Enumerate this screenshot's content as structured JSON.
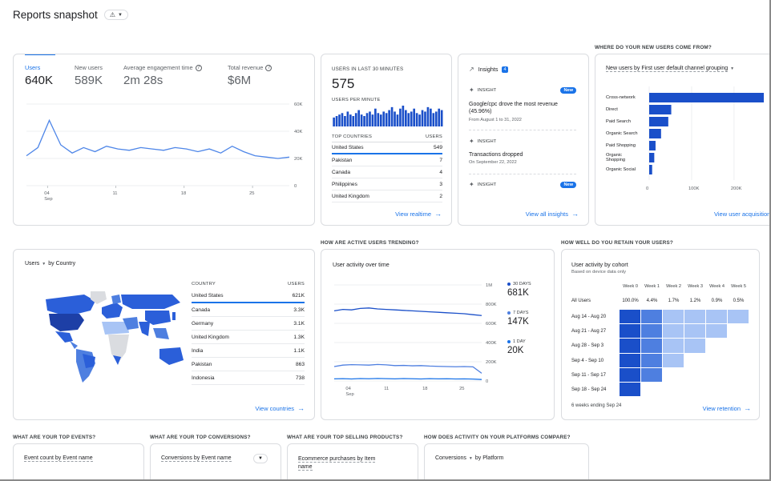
{
  "header": {
    "title": "Reports snapshot"
  },
  "overview": {
    "metrics": [
      {
        "label": "Users",
        "value": "640K"
      },
      {
        "label": "New users",
        "value": "589K"
      },
      {
        "label": "Average engagement time",
        "value": "2m 28s"
      },
      {
        "label": "Total revenue",
        "value": "$6M"
      }
    ],
    "yticks": [
      "60K",
      "40K",
      "20K",
      "0"
    ],
    "xticks": [
      "04",
      "11",
      "18",
      "25"
    ],
    "xmonth": "Sep",
    "series": [
      22,
      28,
      48,
      30,
      24,
      28,
      25,
      29,
      27,
      26,
      28,
      27,
      26,
      28,
      27,
      25,
      27,
      24,
      29,
      25,
      22,
      21,
      20,
      21
    ]
  },
  "realtime": {
    "title": "USERS IN LAST 30 MINUTES",
    "value": "575",
    "sub": "USERS PER MINUTE",
    "bars": [
      6,
      7,
      8,
      9,
      7,
      10,
      8,
      7,
      9,
      11,
      8,
      7,
      9,
      10,
      8,
      12,
      9,
      8,
      10,
      9,
      11,
      13,
      10,
      8,
      12,
      14,
      11,
      9,
      10,
      12,
      9,
      8,
      11,
      10,
      13,
      12,
      9,
      10,
      12,
      11
    ],
    "countries_header": "TOP COUNTRIES",
    "users_header": "USERS",
    "rows": [
      {
        "country": "United States",
        "users": "549"
      },
      {
        "country": "Pakistan",
        "users": "7"
      },
      {
        "country": "Canada",
        "users": "4"
      },
      {
        "country": "Philippines",
        "users": "3"
      },
      {
        "country": "United Kingdom",
        "users": "2"
      }
    ],
    "link": "View realtime"
  },
  "insights": {
    "title": "Insights",
    "count": "4",
    "items": [
      {
        "label": "INSIGHT",
        "badge": "New",
        "text": "Google/cpc drove the most revenue (45.96%)",
        "date": "From August 1 to 31, 2022"
      },
      {
        "label": "INSIGHT",
        "badge": "",
        "text": "Transactions dropped",
        "date": "On September 22, 2022"
      },
      {
        "label": "INSIGHT",
        "badge": "New",
        "text": "",
        "date": ""
      }
    ],
    "link": "View all insights"
  },
  "acquisition": {
    "question": "WHERE DO YOUR NEW USERS COME FROM?",
    "dropdown": "New users by First user default channel grouping",
    "categories": [
      "Cross-network",
      "Direct",
      "Paid Search",
      "Organic Search",
      "Paid Shopping",
      "Organic Shopping",
      "Organic Social"
    ],
    "values": [
      270000,
      52000,
      45000,
      28000,
      15000,
      12000,
      7000
    ],
    "xticks": [
      "0",
      "100K",
      "200K"
    ],
    "link": "View user acquisition"
  },
  "countries": {
    "dropdown": "Users",
    "by": "by Country",
    "col1": "COUNTRY",
    "col2": "USERS",
    "rows": [
      {
        "country": "United States",
        "users": "621K"
      },
      {
        "country": "Canada",
        "users": "3.3K"
      },
      {
        "country": "Germany",
        "users": "3.1K"
      },
      {
        "country": "United Kingdom",
        "users": "1.3K"
      },
      {
        "country": "India",
        "users": "1.1K"
      },
      {
        "country": "Pakistan",
        "users": "863"
      },
      {
        "country": "Indonesia",
        "users": "738"
      }
    ],
    "link": "View countries"
  },
  "activity": {
    "question": "HOW ARE ACTIVE USERS TRENDING?",
    "title": "User activity over time",
    "yticks": [
      "1M",
      "800K",
      "600K",
      "400K",
      "200K",
      "0"
    ],
    "xticks": [
      "04",
      "11",
      "18",
      "25"
    ],
    "xmonth": "Sep",
    "legend": [
      {
        "label": "30 DAYS",
        "value": "681K"
      },
      {
        "label": "7 DAYS",
        "value": "147K"
      },
      {
        "label": "1 DAY",
        "value": "20K"
      }
    ],
    "s30": [
      730000,
      745000,
      740000,
      755000,
      760000,
      750000,
      745000,
      740000,
      735000,
      730000,
      725000,
      720000,
      715000,
      710000,
      705000,
      700000,
      690000,
      681000
    ],
    "s7": [
      150000,
      165000,
      170000,
      168000,
      165000,
      172000,
      168000,
      160000,
      162000,
      158000,
      160000,
      155000,
      152000,
      150000,
      148000,
      150000,
      147000,
      80000
    ],
    "s1": [
      22000,
      24000,
      21000,
      25000,
      23000,
      26000,
      24000,
      22000,
      25000,
      23000,
      21000,
      24000,
      22000,
      23000,
      21000,
      22000,
      20000,
      15000
    ]
  },
  "retention": {
    "question": "HOW WELL DO YOU RETAIN YOUR USERS?",
    "title": "User activity by cohort",
    "subtitle": "Based on device data only",
    "weeks": [
      "Week 0",
      "Week 1",
      "Week 2",
      "Week 3",
      "Week 4",
      "Week 5"
    ],
    "all_label": "All Users",
    "all_values": [
      "100.0%",
      "4.4%",
      "1.7%",
      "1.2%",
      "0.9%",
      "0.5%"
    ],
    "cohorts": [
      "Aug 14 - Aug 20",
      "Aug 21 - Aug 27",
      "Aug 28 - Sep 3",
      "Sep 4 - Sep 10",
      "Sep 11 - Sep 17",
      "Sep 18 - Sep 24"
    ],
    "footer": "6 weeks ending Sep 24",
    "link": "View retention"
  },
  "bottom": [
    {
      "question": "WHAT ARE YOUR TOP EVENTS?",
      "dropdown": "Event count by Event name"
    },
    {
      "question": "WHAT ARE YOUR TOP CONVERSIONS?",
      "dropdown": "Conversions by Event name"
    },
    {
      "question": "WHAT ARE YOUR TOP SELLING PRODUCTS?",
      "dropdown": "Ecommerce purchases by Item name"
    },
    {
      "question": "HOW DOES ACTIVITY ON YOUR PLATFORMS COMPARE?",
      "dropdown": "Conversions",
      "by": "by Platform"
    }
  ],
  "colors": {
    "accent": "#1a73e8",
    "dark": "#1a4fc9",
    "mid": "#4e7fe0",
    "light": "#a8c4f5",
    "grey": "#dadce0"
  }
}
